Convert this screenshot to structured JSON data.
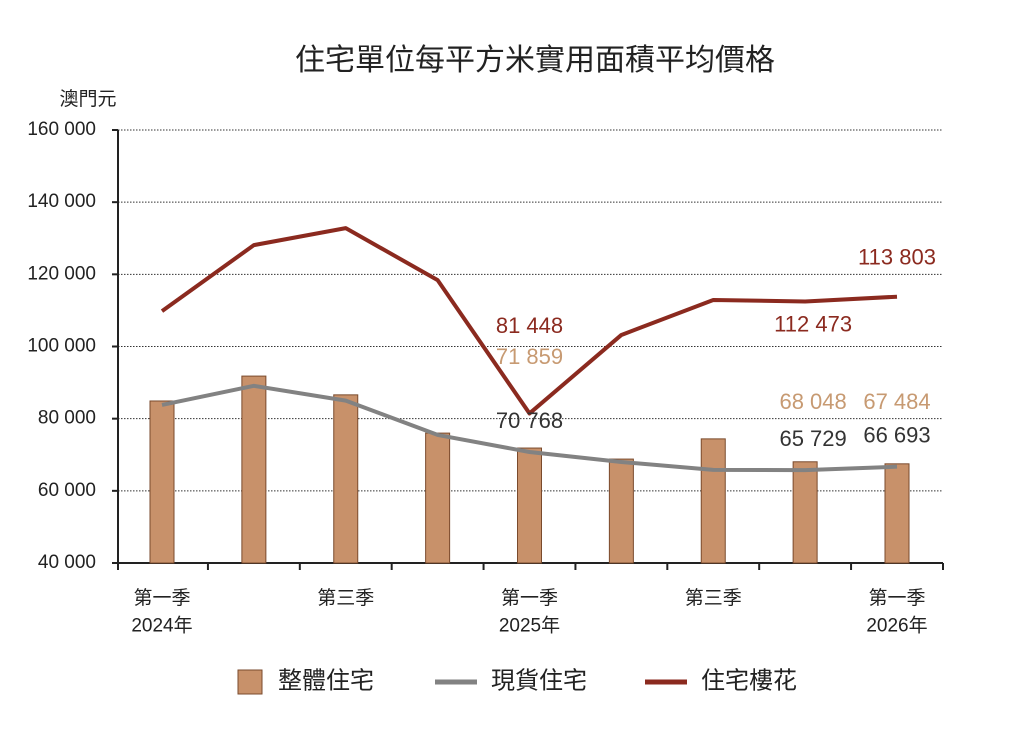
{
  "chart_data": {
    "type": "bar-line",
    "title": "住宅單位每平方米實用面積平均價格",
    "y_unit": "澳門元",
    "categories": [
      "第一季\n2024年",
      null,
      "第三季",
      null,
      "第一季\n2025年",
      null,
      "第三季",
      null,
      "第一季\n2026年"
    ],
    "series": [
      {
        "name": "整體住宅",
        "kind": "bar",
        "color": "#c8916a",
        "values": [
          84900,
          91800,
          86600,
          76000,
          71859,
          68800,
          74400,
          68048,
          67484
        ],
        "value_labels": [
          null,
          null,
          null,
          null,
          "71 859",
          null,
          null,
          "68 048",
          "67 484"
        ]
      },
      {
        "name": "現貨住宅",
        "kind": "line",
        "color": "#828282",
        "values": [
          83800,
          89100,
          85000,
          75500,
          70768,
          68000,
          65800,
          65729,
          66693
        ],
        "value_labels": [
          null,
          null,
          null,
          null,
          "70 768",
          null,
          null,
          "65 729",
          "66 693"
        ]
      },
      {
        "name": "住宅樓花",
        "kind": "line",
        "color": "#8b2a1f",
        "values": [
          109800,
          128100,
          132800,
          118400,
          81448,
          103200,
          112900,
          112473,
          113803
        ],
        "value_labels": [
          null,
          null,
          null,
          null,
          "81 448",
          null,
          null,
          "112 473",
          "113 803"
        ]
      }
    ],
    "ylim": [
      40000,
      160000
    ],
    "yticks": [
      {
        "value": 40000,
        "label": "40 000"
      },
      {
        "value": 60000,
        "label": "60 000"
      },
      {
        "value": 80000,
        "label": "80 000"
      },
      {
        "value": 100000,
        "label": "100 000"
      },
      {
        "value": 120000,
        "label": "120 000"
      },
      {
        "value": 140000,
        "label": "140 000"
      },
      {
        "value": 160000,
        "label": "160 000"
      }
    ],
    "grid": true
  }
}
